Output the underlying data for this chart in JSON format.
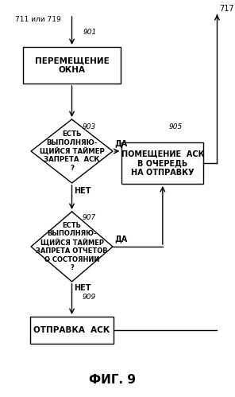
{
  "title": "ФИГ. 9",
  "background_color": "#ffffff",
  "nodes": {
    "start_label": "711 или 719",
    "box1_label": "ПЕРЕМЕЩЕНИЕ\nОКНА",
    "step901": "901",
    "diamond1_label": "ЕСТЬ\nВЫПОЛНЯЮ-\nЩИЙСЯ ТАЙМЕР\nЗАПРЕТА  АСК\n?",
    "step903": "903",
    "diamond2_label": "ЕСТЬ\nВЫПОЛНЯЮ-\nЩИЙСЯ ТАЙМЕР\nЗАПРЕТА ОТЧЕТОВ\nО СОСТОЯНИИ\n?",
    "step907": "907",
    "box2_label": "ПОМЕЩЕНИЕ  АСК\nВ ОЧЕРЕДЬ\nНА ОТПРАВКУ",
    "step905": "905",
    "box3_label": "ОТПРАВКА  АСК",
    "step909": "909",
    "end_label": "717",
    "yes_label": "ДА",
    "no_label": "НЕТ"
  }
}
